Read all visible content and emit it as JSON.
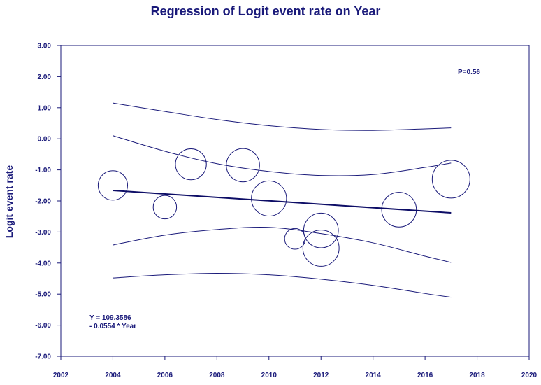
{
  "chart_data": {
    "type": "scatter",
    "title": "Regression of Logit event rate on Year",
    "xlabel": "",
    "ylabel": "Logit event rate",
    "xlim": [
      2002,
      2020
    ],
    "ylim": [
      -7.0,
      3.0
    ],
    "x_ticks": [
      "2002",
      "2004",
      "2006",
      "2008",
      "2010",
      "2012",
      "2014",
      "2016",
      "2018",
      "2020"
    ],
    "y_ticks": [
      "3.00",
      "2.00",
      "1.00",
      "0.00",
      "-1.00",
      "-2.00",
      "-3.00",
      "-4.00",
      "-5.00",
      "-6.00",
      "-7.00"
    ],
    "points": [
      {
        "year": 2004.0,
        "value": -1.5,
        "weight": 0.78
      },
      {
        "year": 2006.0,
        "value": -2.2,
        "weight": 0.62
      },
      {
        "year": 2007.0,
        "value": -0.82,
        "weight": 0.82
      },
      {
        "year": 2009.0,
        "value": -0.85,
        "weight": 0.88
      },
      {
        "year": 2010.0,
        "value": -1.92,
        "weight": 0.93
      },
      {
        "year": 2011.0,
        "value": -3.22,
        "weight": 0.55
      },
      {
        "year": 2012.0,
        "value": -2.95,
        "weight": 0.92
      },
      {
        "year": 2012.0,
        "value": -3.52,
        "weight": 0.96
      },
      {
        "year": 2015.0,
        "value": -2.28,
        "weight": 0.92
      },
      {
        "year": 2017.0,
        "value": -1.3,
        "weight": 1.0
      }
    ],
    "regression": {
      "intercept": 109.3586,
      "slope": -0.0554,
      "x_range": [
        2004,
        2017
      ]
    },
    "ci_upper": [
      [
        2004,
        0.1
      ],
      [
        2006,
        -0.4
      ],
      [
        2008,
        -0.8
      ],
      [
        2010,
        -1.05
      ],
      [
        2012,
        -1.18
      ],
      [
        2014,
        -1.15
      ],
      [
        2016,
        -0.92
      ],
      [
        2017,
        -0.78
      ]
    ],
    "ci_lower": [
      [
        2004,
        -3.42
      ],
      [
        2006,
        -3.1
      ],
      [
        2008,
        -2.92
      ],
      [
        2010,
        -2.85
      ],
      [
        2012,
        -3.05
      ],
      [
        2014,
        -3.35
      ],
      [
        2016,
        -3.78
      ],
      [
        2017,
        -3.98
      ]
    ],
    "pi_upper": [
      [
        2004,
        1.15
      ],
      [
        2006,
        0.88
      ],
      [
        2008,
        0.62
      ],
      [
        2010,
        0.42
      ],
      [
        2012,
        0.3
      ],
      [
        2014,
        0.27
      ],
      [
        2016,
        0.32
      ],
      [
        2017,
        0.35
      ]
    ],
    "pi_lower": [
      [
        2004,
        -4.48
      ],
      [
        2006,
        -4.38
      ],
      [
        2008,
        -4.33
      ],
      [
        2010,
        -4.38
      ],
      [
        2012,
        -4.52
      ],
      [
        2014,
        -4.72
      ],
      [
        2016,
        -4.98
      ],
      [
        2017,
        -5.1
      ]
    ],
    "annotations": {
      "p_value": "P=0.56",
      "equation_line1": "Y = 109.3586",
      "equation_line2": "- 0.0554 * Year"
    },
    "colors": {
      "text": "#1a1a7a",
      "line": "#1a1a7a",
      "regression": "#0d0d66"
    }
  }
}
